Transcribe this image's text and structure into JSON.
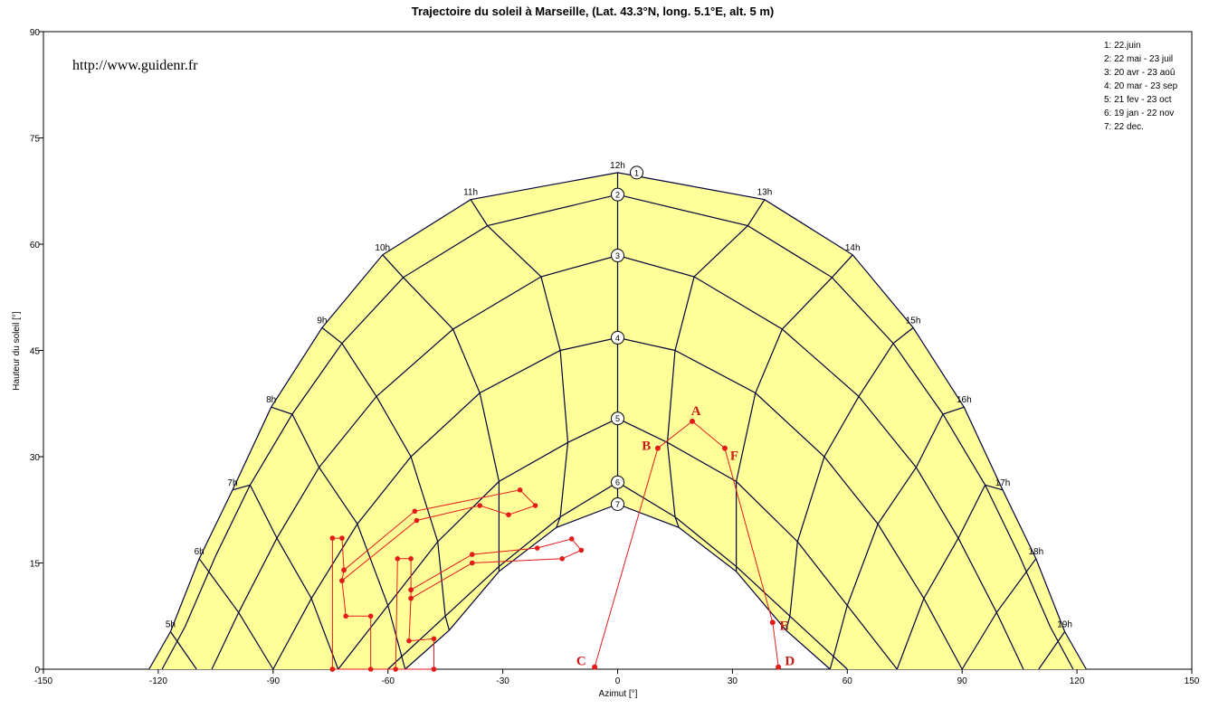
{
  "chart_data": {
    "type": "line",
    "title": "Trajectoire du soleil  à  Marseille, (Lat. 43.3°N, long. 5.1°E, alt. 5 m)",
    "xlabel": "Azimut [°]",
    "ylabel": "Hauteur du soleil [°]",
    "xlim": [
      -150,
      150
    ],
    "ylim": [
      0,
      90
    ],
    "xticks": [
      -150,
      -120,
      -90,
      -60,
      -30,
      0,
      30,
      60,
      90,
      120,
      150
    ],
    "yticks": [
      0,
      15,
      30,
      45,
      60,
      75,
      90
    ],
    "watermark": "http://www.guidenr.fr",
    "colors": {
      "fill": "#ffff99",
      "grid_line": "#00003c",
      "obstacle": "#e31b1b"
    },
    "legend": [
      "1: 22.juin",
      "2: 22 mai - 23 juil",
      "3: 20 avr - 23 aoû",
      "4: 20 mar - 23 sep",
      "5: 21 fev - 23 oct",
      "6: 19 jan - 22 nov",
      "7: 22 dec."
    ],
    "day_series": [
      {
        "name": "1",
        "points": [
          [
            -122.4,
            0
          ],
          [
            -116.8,
            5.3
          ],
          [
            -109.3,
            15.6
          ],
          [
            -100.6,
            25.3
          ],
          [
            -90.5,
            37
          ],
          [
            -77.2,
            48.2
          ],
          [
            -61.4,
            58.5
          ],
          [
            -38.4,
            66.3
          ],
          [
            0,
            70.1
          ],
          [
            38.4,
            66.3
          ],
          [
            61.4,
            58.5
          ],
          [
            77.2,
            48.2
          ],
          [
            90.5,
            37
          ],
          [
            100.6,
            25.3
          ],
          [
            109.3,
            15.6
          ],
          [
            116.8,
            5.3
          ],
          [
            122.4,
            0
          ]
        ]
      },
      {
        "name": "2",
        "points": [
          [
            -119,
            0
          ],
          [
            -113,
            6
          ],
          [
            -105,
            16
          ],
          [
            -96,
            26
          ],
          [
            -85,
            36
          ],
          [
            -72,
            46
          ],
          [
            -56,
            55.3
          ],
          [
            -34,
            62.6
          ],
          [
            0,
            67
          ],
          [
            34,
            62.6
          ],
          [
            56,
            55.3
          ],
          [
            72,
            46
          ],
          [
            85,
            36
          ],
          [
            96,
            26
          ],
          [
            105,
            16
          ],
          [
            113,
            6
          ],
          [
            119,
            0
          ]
        ]
      },
      {
        "name": "3",
        "points": [
          [
            -106,
            0
          ],
          [
            -99,
            8
          ],
          [
            -89,
            18.5
          ],
          [
            -78,
            28.5
          ],
          [
            -63,
            38.5
          ],
          [
            -43,
            48
          ],
          [
            -20,
            55.4
          ],
          [
            0,
            58.4
          ],
          [
            20,
            55.4
          ],
          [
            43,
            48
          ],
          [
            63,
            38.5
          ],
          [
            78,
            28.5
          ],
          [
            89,
            18.5
          ],
          [
            99,
            8
          ],
          [
            106,
            0
          ]
        ]
      },
      {
        "name": "4",
        "points": [
          [
            -90,
            0
          ],
          [
            -80,
            10
          ],
          [
            -68,
            20.5
          ],
          [
            -54,
            30
          ],
          [
            -36,
            39
          ],
          [
            -15,
            45
          ],
          [
            0,
            46.8
          ],
          [
            15,
            45
          ],
          [
            36,
            39
          ],
          [
            54,
            30
          ],
          [
            68,
            20.5
          ],
          [
            80,
            10
          ],
          [
            90,
            0
          ]
        ]
      },
      {
        "name": "5",
        "points": [
          [
            -73,
            0
          ],
          [
            -60,
            9
          ],
          [
            -47,
            18
          ],
          [
            -31,
            26.5
          ],
          [
            -13,
            32
          ],
          [
            0,
            35.4
          ],
          [
            13,
            32
          ],
          [
            31,
            26.5
          ],
          [
            47,
            18
          ],
          [
            60,
            9
          ],
          [
            73,
            0
          ]
        ]
      },
      {
        "name": "6",
        "points": [
          [
            -60,
            0
          ],
          [
            -45,
            7.5
          ],
          [
            -31,
            14.5
          ],
          [
            -15,
            21.5
          ],
          [
            0,
            26.4
          ],
          [
            15,
            21.5
          ],
          [
            31,
            14.5
          ],
          [
            45,
            7.5
          ],
          [
            60,
            0
          ]
        ]
      },
      {
        "name": "7",
        "points": [
          [
            -55.5,
            0
          ],
          [
            -44,
            5.5
          ],
          [
            -31,
            13.8
          ],
          [
            -16,
            20
          ],
          [
            0,
            23.3
          ],
          [
            16,
            20
          ],
          [
            31,
            13.8
          ],
          [
            44,
            5.5
          ],
          [
            55.5,
            0
          ]
        ]
      }
    ],
    "hour_lines": [
      {
        "label": "5h",
        "points": [
          [
            -116.8,
            5.3
          ],
          [
            -110,
            0
          ]
        ]
      },
      {
        "label": "6h",
        "points": [
          [
            -109.3,
            15.6
          ],
          [
            -99,
            8
          ],
          [
            -90,
            0
          ]
        ]
      },
      {
        "label": "7h",
        "points": [
          [
            -100.6,
            25.3
          ],
          [
            -96,
            26
          ],
          [
            -89,
            18.5
          ],
          [
            -80,
            10
          ],
          [
            -73,
            0
          ]
        ]
      },
      {
        "label": "8h",
        "points": [
          [
            -90.5,
            37
          ],
          [
            -85,
            36
          ],
          [
            -78,
            28.5
          ],
          [
            -68,
            20.5
          ],
          [
            -60,
            9
          ],
          [
            -55.5,
            0
          ]
        ]
      },
      {
        "label": "9h",
        "points": [
          [
            -77.2,
            48.2
          ],
          [
            -72,
            46
          ],
          [
            -63,
            38.5
          ],
          [
            -54,
            30
          ],
          [
            -47,
            18
          ],
          [
            -45,
            7.5
          ],
          [
            -44,
            5.5
          ]
        ]
      },
      {
        "label": "10h",
        "points": [
          [
            -61.4,
            58.5
          ],
          [
            -56,
            55.3
          ],
          [
            -43,
            48
          ],
          [
            -36,
            39
          ],
          [
            -31,
            26.5
          ],
          [
            -31,
            14.5
          ],
          [
            -31,
            13.8
          ]
        ]
      },
      {
        "label": "11h",
        "points": [
          [
            -38.4,
            66.3
          ],
          [
            -34,
            62.6
          ],
          [
            -20,
            55.4
          ],
          [
            -15,
            45
          ],
          [
            -13,
            32
          ],
          [
            -15,
            21.5
          ],
          [
            -16,
            20
          ]
        ]
      },
      {
        "label": "12h",
        "points": [
          [
            0,
            70.1
          ],
          [
            0,
            23.3
          ]
        ]
      },
      {
        "label": "13h",
        "points": [
          [
            38.4,
            66.3
          ],
          [
            34,
            62.6
          ],
          [
            20,
            55.4
          ],
          [
            15,
            45
          ],
          [
            13,
            32
          ],
          [
            15,
            21.5
          ],
          [
            16,
            20
          ]
        ]
      },
      {
        "label": "14h",
        "points": [
          [
            61.4,
            58.5
          ],
          [
            56,
            55.3
          ],
          [
            43,
            48
          ],
          [
            36,
            39
          ],
          [
            31,
            26.5
          ],
          [
            31,
            14.5
          ],
          [
            31,
            13.8
          ]
        ]
      },
      {
        "label": "15h",
        "points": [
          [
            77.2,
            48.2
          ],
          [
            72,
            46
          ],
          [
            63,
            38.5
          ],
          [
            54,
            30
          ],
          [
            47,
            18
          ],
          [
            45,
            7.5
          ],
          [
            44,
            5.5
          ]
        ]
      },
      {
        "label": "16h",
        "points": [
          [
            90.5,
            37
          ],
          [
            85,
            36
          ],
          [
            78,
            28.5
          ],
          [
            68,
            20.5
          ],
          [
            60,
            9
          ],
          [
            55.5,
            0
          ]
        ]
      },
      {
        "label": "17h",
        "points": [
          [
            100.6,
            25.3
          ],
          [
            96,
            26
          ],
          [
            89,
            18.5
          ],
          [
            80,
            10
          ],
          [
            73,
            0
          ]
        ]
      },
      {
        "label": "18h",
        "points": [
          [
            109.3,
            15.6
          ],
          [
            99,
            8
          ],
          [
            90,
            0
          ]
        ]
      },
      {
        "label": "19h",
        "points": [
          [
            116.8,
            5.3
          ],
          [
            110,
            0
          ]
        ]
      }
    ],
    "obstacle_main": [
      [
        -6,
        0.3
      ],
      [
        10.5,
        31.2
      ],
      [
        19.5,
        35
      ],
      [
        28,
        31.2
      ],
      [
        40.5,
        6.6
      ],
      [
        42,
        0.3
      ]
    ],
    "obstacle_main_points": [
      [
        -6,
        0.3
      ],
      [
        10.5,
        31.2
      ],
      [
        19.5,
        35
      ],
      [
        28,
        31.2
      ],
      [
        40.5,
        6.6
      ],
      [
        42,
        0.3
      ]
    ],
    "obstacle_labels": [
      {
        "label": "A",
        "x": 20.5,
        "y": 36.5
      },
      {
        "label": "B",
        "x": 7.5,
        "y": 31.6
      },
      {
        "label": "C",
        "x": -9.5,
        "y": 1.2
      },
      {
        "label": "D",
        "x": 45,
        "y": 1.2
      },
      {
        "label": "E",
        "x": 43.5,
        "y": 6.2
      },
      {
        "label": "F",
        "x": 30.5,
        "y": 30.2
      }
    ],
    "obstacle_clusters": [
      [
        [
          -74.5,
          0
        ],
        [
          -74.5,
          18.5
        ],
        [
          -72,
          18.5
        ],
        [
          -71.5,
          14
        ],
        [
          -72,
          12.5
        ],
        [
          -71,
          7.5
        ],
        [
          -64.5,
          7.5
        ],
        [
          -64.5,
          0
        ]
      ],
      [
        [
          -71.5,
          14
        ],
        [
          -53,
          22.3
        ],
        [
          -25.5,
          25.3
        ],
        [
          -21.5,
          23.1
        ],
        [
          -28.5,
          21.8
        ],
        [
          -36,
          23.1
        ],
        [
          -52.5,
          21
        ],
        [
          -72,
          12.5
        ]
      ],
      [
        [
          -58,
          0
        ],
        [
          -57.5,
          15.6
        ],
        [
          -54,
          15.6
        ],
        [
          -54,
          11.2
        ],
        [
          -54,
          10
        ],
        [
          -54.5,
          4
        ],
        [
          -48,
          4.3
        ],
        [
          -48,
          0
        ]
      ],
      [
        [
          -54,
          11.2
        ],
        [
          -38,
          16.2
        ],
        [
          -21,
          17.1
        ],
        [
          -12,
          18.4
        ],
        [
          -9.5,
          16.8
        ],
        [
          -14.5,
          15.6
        ],
        [
          -38,
          15
        ],
        [
          -54,
          10
        ]
      ],
      [
        [
          -74.5,
          0
        ],
        [
          -48,
          0
        ]
      ]
    ]
  }
}
